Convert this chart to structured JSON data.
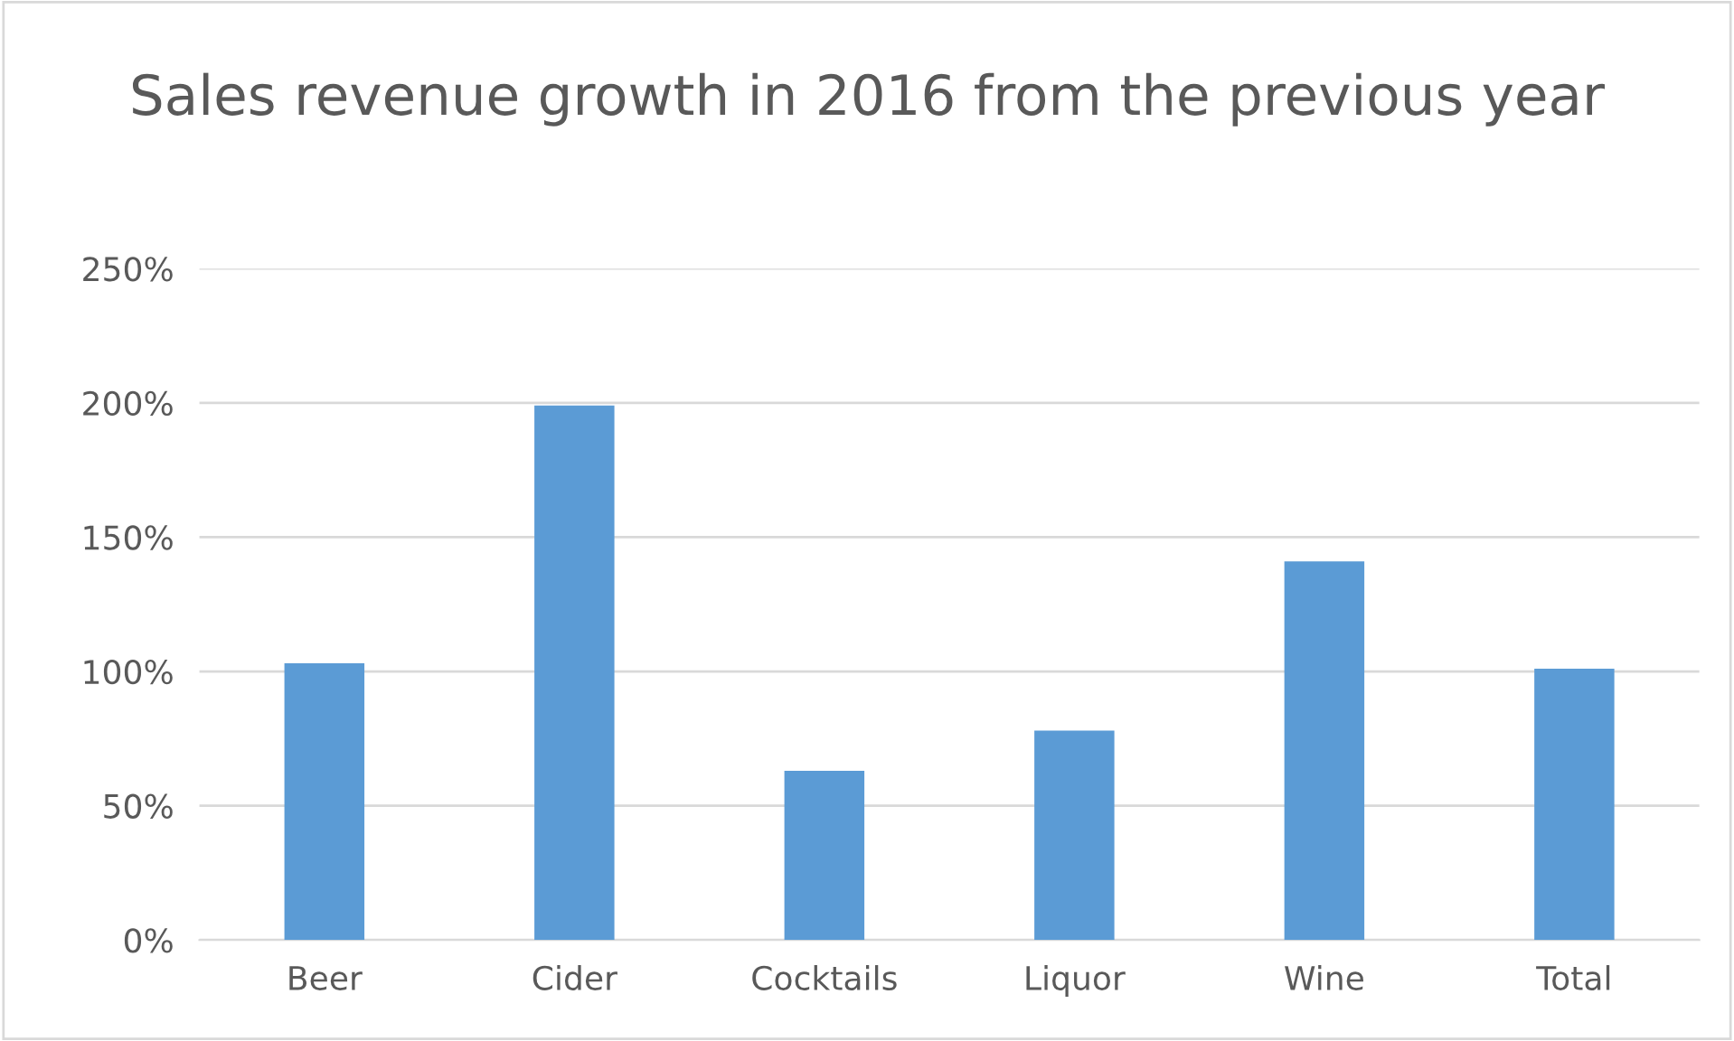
{
  "chart_data": {
    "type": "bar",
    "title": "Sales revenue growth in 2016 from the previous year",
    "categories": [
      "Beer",
      "Cider",
      "Cocktails",
      "Liquor",
      "Wine",
      "Total"
    ],
    "values": [
      103,
      199,
      63,
      78,
      141,
      101
    ],
    "color": "#5b9bd5",
    "ylim": [
      0,
      250
    ],
    "yticks": [
      {
        "value": 0,
        "label": "0%"
      },
      {
        "value": 50,
        "label": "50%"
      },
      {
        "value": 100,
        "label": "100%"
      },
      {
        "value": 150,
        "label": "150%"
      },
      {
        "value": 200,
        "label": "200%"
      },
      {
        "value": 250,
        "label": "250%"
      }
    ],
    "grid": "y"
  }
}
